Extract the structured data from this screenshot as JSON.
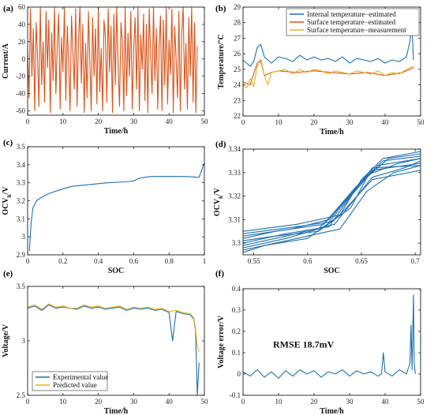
{
  "colors": {
    "blue": "#1f6fb5",
    "orange": "#d95319",
    "yellow": "#edb120"
  },
  "chart_data": [
    {
      "id": "a",
      "panel_label": "(a)",
      "type": "line",
      "xlabel": "Time/h",
      "ylabel": "Current/A",
      "xlim": [
        0,
        50
      ],
      "ylim": [
        -65,
        60
      ],
      "xticks": [
        0,
        10,
        20,
        30,
        40,
        50
      ],
      "xtick_labels": [
        "0",
        "10",
        "20",
        "30",
        "40",
        "50"
      ],
      "yticks": [
        -60,
        -40,
        -20,
        0,
        20,
        40,
        60
      ],
      "ytick_labels": [
        "-60",
        "-40",
        "-20",
        "0",
        "20",
        "40",
        "60"
      ],
      "series": [
        {
          "color": "#d95319",
          "x": [
            0,
            0.4,
            0.8,
            1.2,
            1.6,
            2,
            2.4,
            2.8,
            3.2,
            3.6,
            4,
            4.4,
            4.8,
            5.2,
            5.6,
            6,
            6.4,
            6.8,
            7.2,
            7.6,
            8,
            8.4,
            8.8,
            9.2,
            9.6,
            10,
            10.4,
            10.8,
            11.2,
            11.6,
            12,
            12.4,
            12.8,
            13.2,
            13.6,
            14,
            14.4,
            14.8,
            15.2,
            15.6,
            16,
            16.4,
            16.8,
            17.2,
            17.6,
            18,
            18.4,
            18.8,
            19.2,
            19.6,
            20,
            20.4,
            20.8,
            21.2,
            21.6,
            22,
            22.4,
            22.8,
            23.2,
            23.6,
            24,
            24.4,
            24.8,
            25.2,
            25.6,
            26,
            26.4,
            26.8,
            27.2,
            27.6,
            28,
            28.4,
            28.8,
            29.2,
            29.6,
            30,
            30.4,
            30.8,
            31.2,
            31.6,
            32,
            32.4,
            32.8,
            33.2,
            33.6,
            34,
            34.4,
            34.8,
            35.2,
            35.6,
            36,
            36.4,
            36.8,
            37.2,
            37.6,
            38,
            38.4,
            38.8,
            39.2,
            39.6,
            40,
            40.4,
            40.8,
            41.2,
            41.6,
            42,
            42.4,
            42.8,
            43.2,
            43.6,
            44,
            44.4,
            44.8,
            45.2,
            45.6,
            46,
            46.4,
            46.8,
            47.2,
            47.6,
            48
          ],
          "y": [
            10,
            -45,
            58,
            -20,
            35,
            -60,
            42,
            5,
            -55,
            60,
            -30,
            20,
            -50,
            55,
            -10,
            45,
            -62,
            30,
            -25,
            60,
            -40,
            15,
            52,
            -58,
            25,
            -15,
            60,
            -48,
            38,
            -5,
            -60,
            50,
            10,
            -35,
            58,
            -55,
            22,
            60,
            -28,
            40,
            -62,
            18,
            -45,
            55,
            0,
            -60,
            48,
            -20,
            35,
            -52,
            60,
            -38,
            12,
            -60,
            45,
            25,
            -50,
            58,
            -15,
            38,
            -62,
            52,
            -30,
            60,
            -8,
            -55,
            42,
            20,
            -60,
            60,
            -42,
            30,
            -20,
            55,
            -58,
            10,
            48,
            -35,
            60,
            -60,
            28,
            -12,
            52,
            -48,
            40,
            -62,
            58,
            5,
            -40,
            60,
            -25,
            35,
            -58,
            15,
            50,
            -60,
            45,
            -30,
            60,
            -52,
            22,
            -18,
            58,
            -62,
            38,
            0,
            -45,
            55,
            -60,
            30,
            60,
            -35,
            18,
            -58,
            48,
            -20,
            60,
            -50,
            42,
            -62,
            15
          ],
          "note": "values estimated; dense fluctuating current profile, bounded about ±60 A"
        }
      ]
    },
    {
      "id": "b",
      "panel_label": "(b)",
      "type": "line",
      "xlabel": "Time/h",
      "ylabel": "Temperature/°C",
      "xlim": [
        0,
        50
      ],
      "ylim": [
        22,
        29
      ],
      "xticks": [
        0,
        10,
        20,
        30,
        40,
        50
      ],
      "xtick_labels": [
        "0",
        "10",
        "20",
        "30",
        "40",
        "50"
      ],
      "yticks": [
        22,
        23,
        24,
        25,
        26,
        27,
        28,
        29
      ],
      "ytick_labels": [
        "22",
        "23",
        "24",
        "25",
        "26",
        "27",
        "28",
        "29"
      ],
      "legend": {
        "position": "top-right",
        "entries": [
          "Internal temperature−estimated",
          "Surface temperature−estimated",
          "Surface temperature−measurement"
        ]
      },
      "series": [
        {
          "name": "Internal temperature−estimated",
          "color": "#1f6fb5",
          "x": [
            0,
            1,
            2,
            3,
            4,
            5,
            6,
            7,
            8,
            9,
            10,
            12,
            14,
            16,
            18,
            20,
            22,
            24,
            26,
            28,
            30,
            32,
            34,
            36,
            38,
            40,
            42,
            44,
            46,
            47,
            47.5,
            48
          ],
          "y": [
            25.6,
            25.4,
            25.2,
            25.5,
            26.4,
            26.6,
            25.8,
            25.6,
            25.4,
            25.6,
            25.8,
            25.7,
            25.5,
            25.9,
            25.6,
            25.8,
            25.6,
            25.7,
            25.5,
            25.8,
            25.4,
            25.7,
            25.6,
            25.5,
            25.7,
            25.4,
            25.6,
            25.5,
            25.8,
            26.8,
            28.1,
            25.6
          ]
        },
        {
          "name": "Surface temperature−estimated",
          "color": "#d95319",
          "x": [
            0,
            2,
            4,
            5,
            6,
            8,
            10,
            15,
            20,
            25,
            30,
            35,
            40,
            45,
            48
          ],
          "y": [
            24.2,
            24.0,
            25.4,
            25.6,
            24.6,
            24.8,
            24.9,
            24.8,
            24.9,
            24.8,
            24.7,
            24.8,
            24.6,
            24.8,
            25.1
          ]
        },
        {
          "name": "Surface temperature−measurement",
          "color": "#edb120",
          "x": [
            0,
            1,
            2,
            3,
            4,
            5,
            6,
            7,
            8,
            10,
            12,
            14,
            16,
            18,
            20,
            22,
            24,
            26,
            28,
            30,
            32,
            34,
            36,
            38,
            40,
            42,
            44,
            46,
            48
          ],
          "y": [
            24.0,
            23.8,
            24.4,
            23.9,
            25.2,
            25.5,
            24.6,
            24.0,
            24.8,
            24.9,
            25.0,
            24.7,
            25.0,
            24.8,
            25.0,
            24.9,
            24.7,
            24.9,
            24.8,
            24.7,
            24.9,
            24.8,
            24.7,
            24.9,
            24.6,
            24.8,
            24.7,
            25.0,
            25.2
          ]
        }
      ]
    },
    {
      "id": "c",
      "panel_label": "(c)",
      "type": "line",
      "xlabel": "SOC",
      "ylabel_main": "OCV",
      "ylabel_sub": "h",
      "ylabel_tail": "/V",
      "xlim": [
        0,
        1
      ],
      "ylim": [
        2.9,
        3.5
      ],
      "xticks": [
        0,
        0.2,
        0.4,
        0.6,
        0.8,
        1
      ],
      "xtick_labels": [
        "0",
        "0.2",
        "0.4",
        "0.6",
        "0.8",
        "1"
      ],
      "yticks": [
        2.9,
        3,
        3.1,
        3.2,
        3.3,
        3.4,
        3.5
      ],
      "ytick_labels": [
        "2.9",
        "3",
        "3.1",
        "3.2",
        "3.3",
        "3.4",
        "3.5"
      ],
      "series": [
        {
          "color": "#1f6fb5",
          "x": [
            0.01,
            0.02,
            0.03,
            0.05,
            0.08,
            0.12,
            0.18,
            0.25,
            0.35,
            0.45,
            0.55,
            0.6,
            0.63,
            0.66,
            0.7,
            0.8,
            0.9,
            0.97,
            1.0
          ],
          "y": [
            2.92,
            3.08,
            3.16,
            3.2,
            3.22,
            3.24,
            3.26,
            3.28,
            3.29,
            3.3,
            3.305,
            3.31,
            3.325,
            3.33,
            3.335,
            3.335,
            3.335,
            3.33,
            3.41
          ]
        }
      ]
    },
    {
      "id": "d",
      "panel_label": "(d)",
      "type": "line",
      "xlabel": "SOC",
      "ylabel_main": "OCV",
      "ylabel_sub": "h",
      "ylabel_tail": "/V",
      "xlim": [
        0.54,
        0.705
      ],
      "ylim": [
        3.295,
        3.34
      ],
      "xticks": [
        0.55,
        0.6,
        0.65,
        0.7
      ],
      "xtick_labels": [
        "0.55",
        "0.6",
        "0.65",
        "0.7"
      ],
      "yticks": [
        3.3,
        3.31,
        3.32,
        3.33,
        3.34
      ],
      "ytick_labels": [
        "3.3",
        "3.31",
        "3.32",
        "3.33",
        "3.34"
      ],
      "series": [
        {
          "color": "#1f6fb5",
          "x": [
            0.54,
            0.58,
            0.61,
            0.635,
            0.66,
            0.705
          ],
          "y": [
            3.298,
            3.302,
            3.306,
            3.318,
            3.331,
            3.334
          ]
        },
        {
          "color": "#1f6fb5",
          "x": [
            0.54,
            0.58,
            0.62,
            0.64,
            0.665,
            0.705
          ],
          "y": [
            3.3,
            3.304,
            3.307,
            3.32,
            3.333,
            3.336
          ]
        },
        {
          "color": "#1f6fb5",
          "x": [
            0.54,
            0.57,
            0.615,
            0.645,
            0.67,
            0.705
          ],
          "y": [
            3.302,
            3.305,
            3.308,
            3.324,
            3.335,
            3.337
          ]
        },
        {
          "color": "#1f6fb5",
          "x": [
            0.54,
            0.59,
            0.62,
            0.65,
            0.675,
            0.705
          ],
          "y": [
            3.304,
            3.307,
            3.309,
            3.326,
            3.336,
            3.338
          ]
        },
        {
          "color": "#1f6fb5",
          "x": [
            0.54,
            0.6,
            0.63,
            0.655,
            0.68,
            0.705
          ],
          "y": [
            3.297,
            3.303,
            3.306,
            3.322,
            3.33,
            3.333
          ]
        },
        {
          "color": "#1f6fb5",
          "x": [
            0.54,
            0.58,
            0.625,
            0.66,
            0.69,
            0.705
          ],
          "y": [
            3.299,
            3.303,
            3.308,
            3.328,
            3.332,
            3.335
          ]
        },
        {
          "color": "#1f6fb5",
          "x": [
            0.54,
            0.57,
            0.61,
            0.64,
            0.66,
            0.705
          ],
          "y": [
            3.301,
            3.303,
            3.305,
            3.315,
            3.332,
            3.333
          ]
        },
        {
          "color": "#1f6fb5",
          "x": [
            0.54,
            0.585,
            0.62,
            0.655,
            0.685,
            0.705
          ],
          "y": [
            3.303,
            3.306,
            3.31,
            3.329,
            3.334,
            3.336
          ]
        },
        {
          "color": "#1f6fb5",
          "x": [
            0.54,
            0.56,
            0.6,
            0.63,
            0.66,
            0.705
          ],
          "y": [
            3.296,
            3.299,
            3.302,
            3.312,
            3.327,
            3.331
          ]
        },
        {
          "color": "#1f6fb5",
          "x": [
            0.54,
            0.59,
            0.63,
            0.65,
            0.67,
            0.705
          ],
          "y": [
            3.305,
            3.308,
            3.312,
            3.327,
            3.336,
            3.339
          ]
        }
      ]
    },
    {
      "id": "e",
      "panel_label": "(e)",
      "type": "line",
      "xlabel": "Time/h",
      "ylabel": "Voltage/V",
      "xlim": [
        0,
        50
      ],
      "ylim": [
        2.5,
        3.5
      ],
      "xticks": [
        0,
        10,
        20,
        30,
        40,
        50
      ],
      "xtick_labels": [
        "0",
        "10",
        "20",
        "30",
        "40",
        "50"
      ],
      "yticks": [
        2.5,
        3,
        3.5
      ],
      "ytick_labels": [
        "2.5",
        "3",
        "3.5"
      ],
      "legend": {
        "position": "bottom-left",
        "entries": [
          "Experimental value",
          "Predicted value"
        ]
      },
      "series": [
        {
          "name": "Experimental value",
          "color": "#1f6fb5",
          "x": [
            0,
            2,
            4,
            6,
            8,
            10,
            12,
            14,
            16,
            18,
            20,
            22,
            24,
            26,
            28,
            30,
            32,
            34,
            36,
            38,
            40,
            41,
            42,
            44,
            46,
            47,
            47.5,
            48,
            48.5
          ],
          "y": [
            3.3,
            3.32,
            3.28,
            3.33,
            3.3,
            3.31,
            3.3,
            3.29,
            3.32,
            3.3,
            3.31,
            3.29,
            3.3,
            3.31,
            3.28,
            3.3,
            3.29,
            3.3,
            3.28,
            3.29,
            3.26,
            3.0,
            3.27,
            3.25,
            3.24,
            3.2,
            3.1,
            2.5,
            2.8
          ]
        },
        {
          "name": "Predicted value",
          "color": "#edb120",
          "x": [
            0,
            2,
            4,
            6,
            8,
            10,
            12,
            14,
            16,
            18,
            20,
            22,
            24,
            26,
            28,
            30,
            32,
            34,
            36,
            38,
            40,
            42,
            44,
            46,
            47,
            47.5,
            48,
            48.5
          ],
          "y": [
            3.31,
            3.33,
            3.29,
            3.34,
            3.31,
            3.32,
            3.3,
            3.3,
            3.33,
            3.31,
            3.32,
            3.3,
            3.31,
            3.32,
            3.29,
            3.31,
            3.3,
            3.31,
            3.29,
            3.3,
            3.27,
            3.28,
            3.26,
            3.25,
            3.21,
            3.12,
            2.95,
            2.9
          ]
        }
      ]
    },
    {
      "id": "f",
      "panel_label": "(f)",
      "type": "line",
      "xlabel": "Time/h",
      "ylabel": "Voltage error/V",
      "xlim": [
        0,
        50
      ],
      "ylim": [
        -0.1,
        0.4
      ],
      "xticks": [
        0,
        10,
        20,
        30,
        40,
        50
      ],
      "xtick_labels": [
        "0",
        "10",
        "20",
        "30",
        "40",
        "50"
      ],
      "yticks": [
        -0.1,
        0,
        0.1,
        0.2,
        0.3,
        0.4
      ],
      "ytick_labels": [
        "-0.1",
        "0",
        "0.1",
        "0.2",
        "0.3",
        "0.4"
      ],
      "annotation": "RMSE 18.7mV",
      "series": [
        {
          "color": "#1f6fb5",
          "x": [
            0,
            2,
            4,
            6,
            8,
            10,
            12,
            14,
            16,
            18,
            20,
            22,
            24,
            26,
            28,
            30,
            32,
            34,
            36,
            38,
            39,
            39.5,
            40,
            42,
            44,
            46,
            47,
            47.3,
            47.6,
            48,
            48.2,
            48.5
          ],
          "y": [
            0.01,
            -0.01,
            0.02,
            -0.015,
            0.01,
            -0.02,
            0.015,
            -0.01,
            0.02,
            0.0,
            0.015,
            -0.015,
            0.01,
            0.0,
            0.02,
            -0.01,
            0.015,
            0.0,
            0.01,
            -0.01,
            0.0,
            0.1,
            0.01,
            -0.01,
            0.02,
            0.0,
            0.05,
            0.23,
            0.02,
            0.37,
            0.05,
            0.0
          ]
        }
      ]
    }
  ]
}
